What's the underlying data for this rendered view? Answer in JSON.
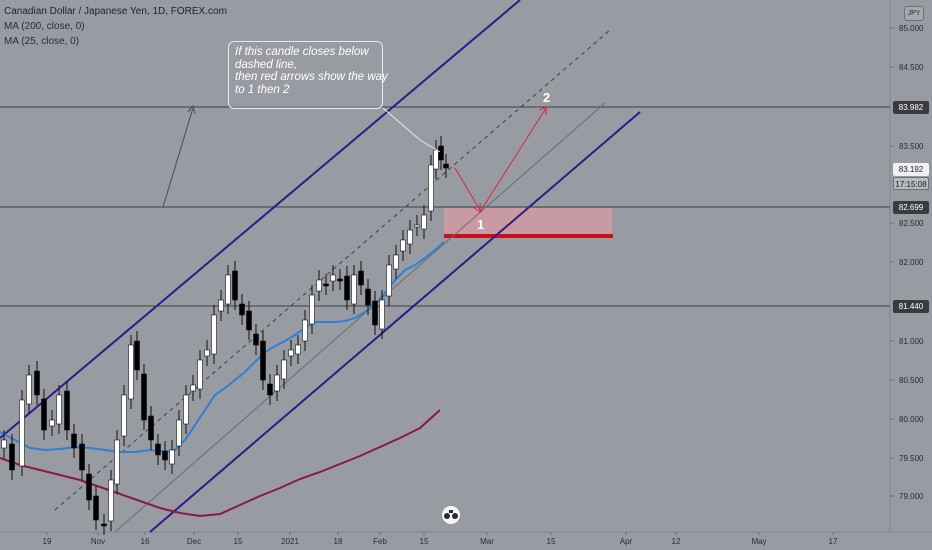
{
  "legend": {
    "symbol": "Canadian Dollar / Japanese Yen, 1D, FOREX.com",
    "ma200": "MA (200, close, 0)",
    "ma25": "MA (25, close, 0)"
  },
  "currency": "JPY",
  "note": {
    "lines": [
      "If this candle closes below",
      "dashed line,",
      "then red arrows show the way",
      "to 1 then 2"
    ]
  },
  "arrow_labels": {
    "one": "1",
    "two": "2"
  },
  "price_axis": {
    "ticks": [
      "85.000",
      "84.500",
      "83.500",
      "82.500",
      "82.000",
      "81.000",
      "80.500",
      "80.000",
      "79.500",
      "79.000"
    ],
    "tags": {
      "resistance": "83.982",
      "last_price": "83.192",
      "countdown": "17:15:08",
      "support_upper": "82.699",
      "support_lower": "81.440"
    }
  },
  "time_axis": {
    "labels": [
      "19",
      "Nov",
      "16",
      "Dec",
      "15",
      "2021",
      "18",
      "Feb",
      "15",
      "Mar",
      "15",
      "Apr",
      "12",
      "May",
      "17"
    ]
  },
  "colors": {
    "background": "#999ba2",
    "channel": "#2e1a8a",
    "ma25": "#2e7fd6",
    "ma200": "#8a1a45",
    "support_zone": "#d99aa3",
    "support_line": "#c8101c",
    "arrows": "#d8283a",
    "candle_up": "#ffffff",
    "candle_down": "#000000"
  },
  "icons": {
    "logo": "tradingview-logo-icon"
  }
}
